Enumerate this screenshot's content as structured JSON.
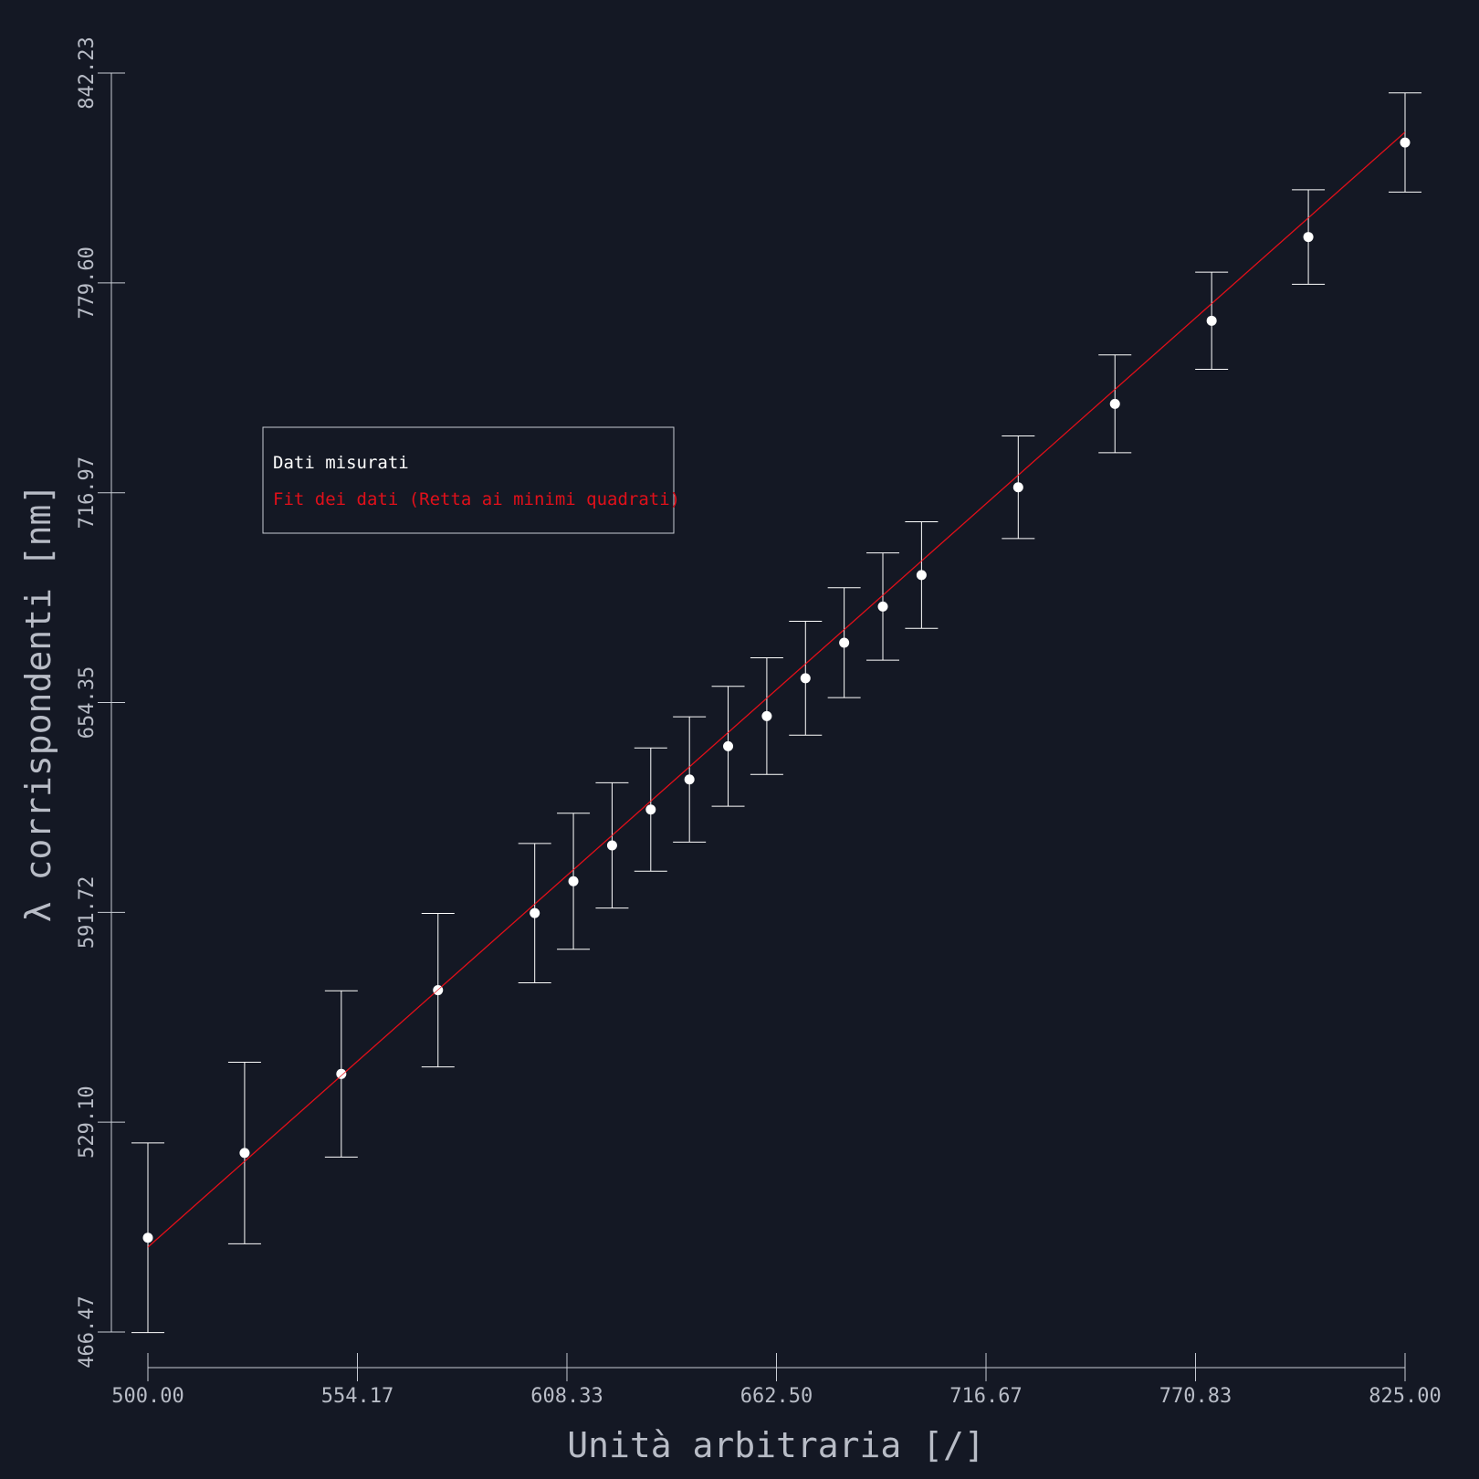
{
  "colors": {
    "background": "#141824",
    "axis": "#c8ccd4",
    "data": "#ffffff",
    "fit": "#e0101a",
    "legend_border": "#c8ccd4"
  },
  "chart_data": {
    "type": "scatter",
    "xlabel": "Unità arbitraria [/]",
    "ylabel": "λ corrispondenti [nm]",
    "xlim": [
      500.0,
      825.0
    ],
    "ylim": [
      466.47,
      842.23
    ],
    "x_ticks": [
      "500.00",
      "554.17",
      "608.33",
      "662.50",
      "716.67",
      "770.83",
      "825.00"
    ],
    "y_ticks": [
      "466.47",
      "529.10",
      "591.72",
      "654.35",
      "716.97",
      "779.60",
      "842.23"
    ],
    "legend_position": "upper-left",
    "series": [
      {
        "name": "Dati misurati",
        "kind": "points-with-error-bars",
        "x": [
          500,
          525,
          550,
          575,
          600,
          610,
          620,
          630,
          640,
          650,
          660,
          670,
          680,
          690,
          700,
          725,
          750,
          775,
          800,
          825
        ],
        "y": [
          494.6,
          519.9,
          543.5,
          568.5,
          591.5,
          601.0,
          611.7,
          622.4,
          631.4,
          641.3,
          650.3,
          661.6,
          672.2,
          683.0,
          692.4,
          718.6,
          743.5,
          768.3,
          793.3,
          821.5
        ],
        "y_err": [
          28.3,
          27.1,
          24.8,
          22.9,
          20.8,
          20.3,
          18.7,
          18.4,
          18.7,
          17.9,
          17.4,
          17.0,
          16.4,
          16.0,
          15.9,
          15.3,
          14.6,
          14.5,
          14.1,
          14.8
        ]
      },
      {
        "name": "Fit dei dati (Retta ai minimi quadrati)",
        "kind": "line",
        "x": [
          500,
          825
        ],
        "y": [
          491.8,
          824.6
        ]
      }
    ]
  }
}
